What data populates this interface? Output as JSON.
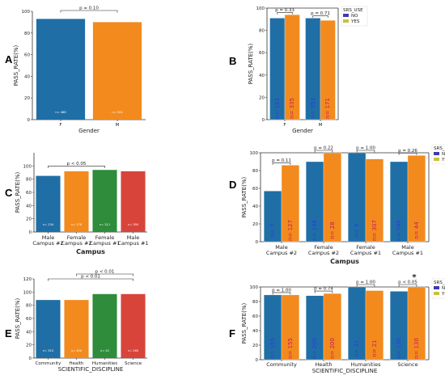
{
  "colors": {
    "blue": "#1f6fa6",
    "orange": "#f28a1e",
    "green": "#2f8c3a",
    "red": "#d8443a",
    "yellow_legend": "#c8c23a",
    "navy_legend": "#3b3bb0",
    "bar_text_blue": "#2b3fd6",
    "bar_text_red": "#c8185a"
  },
  "chart_data": [
    {
      "panel": "A",
      "type": "bar",
      "categories": [
        "F",
        "M"
      ],
      "values": [
        93,
        90
      ],
      "bar_labels": [
        "n= 488",
        "n= 524"
      ],
      "xlabel": "Gender",
      "ylabel": "PASS_RATE(%)",
      "ylim": [
        0,
        100
      ],
      "yticks": [
        0,
        20,
        40,
        60,
        80,
        100
      ],
      "pvalues": [
        {
          "from": 0,
          "to": 1,
          "text": "p = 0.10"
        }
      ]
    },
    {
      "panel": "B",
      "type": "bar",
      "categories": [
        "F",
        "M"
      ],
      "series": [
        {
          "name": "NO",
          "values": [
            91,
            91
          ],
          "bar_labels": [
            "n= 153",
            "n= 353"
          ]
        },
        {
          "name": "YES",
          "values": [
            94,
            89
          ],
          "bar_labels": [
            "n= 335",
            "n= 171"
          ]
        }
      ],
      "legend_title": "SRS_USE",
      "xlabel": "Gender",
      "ylabel": "PASS_RATE(%)",
      "ylim": [
        0,
        100
      ],
      "yticks": [
        0,
        20,
        40,
        60,
        80,
        100
      ],
      "pvalues": [
        {
          "group": 0,
          "text": "p = 0.33"
        },
        {
          "group": 1,
          "text": "p = 0.71"
        }
      ]
    },
    {
      "panel": "C",
      "type": "bar",
      "categories": [
        [
          "Male",
          "Campus #2"
        ],
        [
          "Female",
          "Campus #2"
        ],
        [
          "Female",
          "Campus #1"
        ],
        [
          "Male",
          "Campus #1"
        ]
      ],
      "values": [
        85,
        92,
        94,
        92
      ],
      "bar_labels": [
        "n= 134",
        "n= 176",
        "n= 311",
        "n= 390"
      ],
      "xlabel": "Campus",
      "ylabel": "PASS_RATE(%)",
      "ylim": [
        0,
        120
      ],
      "yticks": [
        0,
        20,
        40,
        60,
        80,
        100
      ],
      "pvalues": [
        {
          "from": 0,
          "to": 2,
          "text": "p < 0.05"
        }
      ]
    },
    {
      "panel": "D",
      "type": "bar",
      "categories": [
        [
          "Male",
          "Campus #2"
        ],
        [
          "Female",
          "Campus #2"
        ],
        [
          "Female",
          "Campus #1"
        ],
        [
          "Male",
          "Campus #1"
        ]
      ],
      "series": [
        {
          "name": "NO",
          "values": [
            57,
            90,
            100,
            90
          ],
          "bar_labels": [
            "n= 7",
            "n= 148",
            "n= 5",
            "n= 346"
          ]
        },
        {
          "name": "YES",
          "values": [
            86,
            100,
            93,
            97
          ],
          "bar_labels": [
            "n= 127",
            "n= 28",
            "n= 307",
            "n= 44"
          ]
        }
      ],
      "legend_title": "SRS_USE",
      "xlabel": "Campus",
      "ylabel": "PASS_RATE(%)",
      "ylim": [
        0,
        100
      ],
      "yticks": [
        0,
        20,
        40,
        60,
        80,
        100
      ],
      "pvalues": [
        {
          "group": 0,
          "text": "p = 0.11"
        },
        {
          "group": 1,
          "text": "p = 0.22"
        },
        {
          "group": 2,
          "text": "p = 1.00"
        },
        {
          "group": 3,
          "text": "p = 0.26"
        }
      ]
    },
    {
      "panel": "E",
      "type": "bar",
      "categories": [
        "Community",
        "Health",
        "Humanities",
        "Science"
      ],
      "values": [
        88,
        88,
        97,
        97
      ],
      "bar_labels": [
        "n= 310",
        "n= 400",
        "n= 42",
        "n= 260"
      ],
      "xlabel": "SCIENTIFIC_DISCIPLINE",
      "ylabel": "PASS_RATE(%)",
      "ylim": [
        0,
        120
      ],
      "yticks": [
        0,
        20,
        40,
        60,
        80,
        100,
        120
      ],
      "pvalues": [
        {
          "from": 0,
          "to": 3,
          "text": "p < 0.01"
        },
        {
          "from": 1,
          "to": 3,
          "text": "p < 0.01"
        }
      ]
    },
    {
      "panel": "F",
      "type": "bar",
      "categories": [
        "Community",
        "Health",
        "Humanities",
        "Science"
      ],
      "series": [
        {
          "name": "NO",
          "values": [
            89,
            88,
            100,
            94
          ],
          "bar_labels": [
            "n= 155",
            "n= 200",
            "n= 21",
            "n= 130"
          ]
        },
        {
          "name": "YES",
          "values": [
            89,
            91,
            95,
            100
          ],
          "bar_labels": [
            "n= 155",
            "n= 200",
            "n= 21",
            "n= 130"
          ]
        }
      ],
      "legend_title": "SRS_USE",
      "xlabel": "SCIENTIFIC_DISCIPLINE",
      "ylabel": "PASS_RATE(%)",
      "ylim": [
        0,
        100
      ],
      "yticks": [
        0,
        20,
        40,
        60,
        80,
        100
      ],
      "pvalues": [
        {
          "group": 0,
          "text": "p = 1.00"
        },
        {
          "group": 1,
          "text": "p = 0.74"
        },
        {
          "group": 2,
          "text": "p = 1.00"
        },
        {
          "group": 3,
          "text": "p < 0.05",
          "star": "*"
        }
      ]
    }
  ]
}
